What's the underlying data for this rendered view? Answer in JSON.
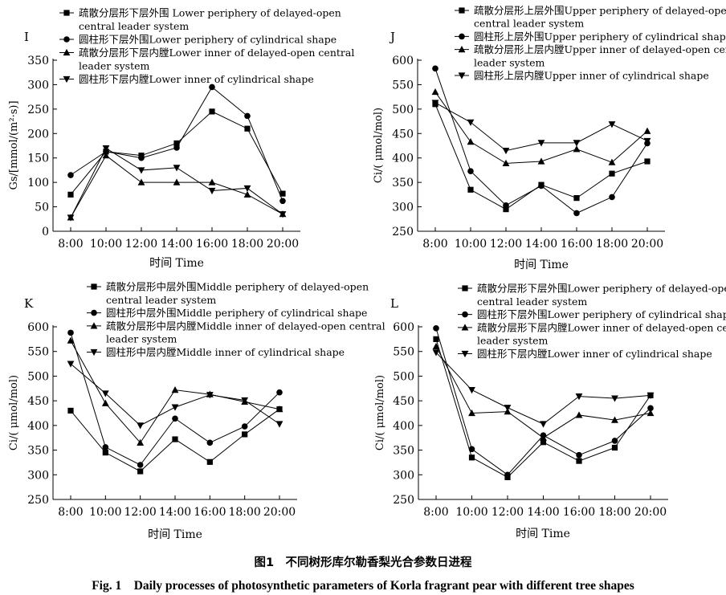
{
  "figure": {
    "caption_cn": "图1　不同树形库尔勒香梨光合参数日进程",
    "caption_en": "Fig. 1　Daily processes of photosynthetic parameters of Korla fragrant pear with different tree shapes"
  },
  "chart_data": [
    {
      "panel": "I",
      "type": "line",
      "xlabel": "时间 Time",
      "ylabel": "Gs/[mmol/(m²·s)]",
      "categories": [
        "8:00",
        "10:00",
        "12:00",
        "14:00",
        "16:00",
        "18:00",
        "20:00"
      ],
      "ylim": [
        0,
        350
      ],
      "yticks": [
        0,
        50,
        100,
        150,
        200,
        250,
        300,
        350
      ],
      "grid": false,
      "legend_position": "top",
      "series": [
        {
          "name": "疏散分层形下层外围 Lower periphery of delayed-open central leader system",
          "marker": "square",
          "values": [
            75,
            163,
            155,
            180,
            245,
            210,
            77
          ]
        },
        {
          "name": "圆柱形下层外围Lower periphery of cylindrical shape",
          "marker": "circle",
          "values": [
            115,
            163,
            150,
            171,
            295,
            236,
            62
          ]
        },
        {
          "name": "疏散分层形下层内膛Lower inner of delayed-open central leader system",
          "marker": "triangle-up",
          "values": [
            28,
            155,
            100,
            100,
            100,
            75,
            35
          ]
        },
        {
          "name": "圆柱形下层内膛Lower inner of cylindrical shape",
          "marker": "triangle-down",
          "values": [
            28,
            170,
            125,
            130,
            83,
            88,
            35
          ]
        }
      ]
    },
    {
      "panel": "J",
      "type": "line",
      "xlabel": "时间 Time",
      "ylabel": "Ci/( μmol/mol)",
      "categories": [
        "8:00",
        "10:00",
        "12:00",
        "14:00",
        "16:00",
        "18:00",
        "20:00"
      ],
      "ylim": [
        250,
        600
      ],
      "yticks": [
        250,
        300,
        350,
        400,
        450,
        500,
        550,
        600
      ],
      "grid": false,
      "legend_position": "top",
      "series": [
        {
          "name": "疏散分层形上层外围Upper periphery of delayed-open central leader system",
          "marker": "square",
          "values": [
            510,
            335,
            295,
            345,
            318,
            368,
            393
          ]
        },
        {
          "name": "圆柱形上层外围Upper periphery of cylindrical shape",
          "marker": "circle",
          "values": [
            583,
            373,
            303,
            343,
            287,
            320,
            430
          ]
        },
        {
          "name": "疏散分层形上层内膛Upper inner of delayed-open central leader system",
          "marker": "triangle-up",
          "values": [
            535,
            433,
            389,
            393,
            418,
            391,
            455
          ]
        },
        {
          "name": "圆柱形上层内膛Upper inner of cylindrical shape",
          "marker": "triangle-down",
          "values": [
            513,
            473,
            415,
            431,
            431,
            469,
            435
          ]
        }
      ]
    },
    {
      "panel": "K",
      "type": "line",
      "xlabel": "时间 Time",
      "ylabel": "Ci/( μmol/mol)",
      "categories": [
        "8:00",
        "10:00",
        "12:00",
        "14:00",
        "16:00",
        "18:00",
        "20:00"
      ],
      "ylim": [
        250,
        600
      ],
      "yticks": [
        250,
        300,
        350,
        400,
        450,
        500,
        550,
        600
      ],
      "grid": false,
      "legend_position": "top",
      "series": [
        {
          "name": "疏散分层形中层外围Middle  periphery of delayed-open central leader system",
          "marker": "square",
          "values": [
            430,
            345,
            307,
            372,
            326,
            382,
            433
          ]
        },
        {
          "name": "圆柱形中层外围Middle periphery of cylindrical shape",
          "marker": "circle",
          "values": [
            588,
            356,
            320,
            414,
            365,
            398,
            467
          ]
        },
        {
          "name": "疏散分层形中层内膛Middle inner of delayed-open central leader system",
          "marker": "triangle-up",
          "values": [
            572,
            445,
            365,
            472,
            463,
            448,
            433
          ]
        },
        {
          "name": "圆柱形中层内膛Middle inner of cylindrical shape",
          "marker": "triangle-down",
          "values": [
            525,
            465,
            400,
            437,
            462,
            451,
            403
          ]
        }
      ]
    },
    {
      "panel": "L",
      "type": "line",
      "xlabel": "时间 Time",
      "ylabel": "Ci/( μmol/mol)",
      "categories": [
        "8:00",
        "10:00",
        "12:00",
        "14:00",
        "16:00",
        "18:00",
        "20:00"
      ],
      "ylim": [
        250,
        600
      ],
      "yticks": [
        250,
        300,
        350,
        400,
        450,
        500,
        550,
        600
      ],
      "grid": false,
      "legend_position": "top",
      "series": [
        {
          "name": "疏散分层形下层外围Lower periphery of delayed-open central leader system",
          "marker": "square",
          "values": [
            575,
            335,
            295,
            366,
            328,
            355,
            461
          ]
        },
        {
          "name": "圆柱形下层外围Lower periphery of cylindrical shape",
          "marker": "circle",
          "values": [
            597,
            352,
            300,
            380,
            340,
            369,
            435
          ]
        },
        {
          "name": "疏散分层形下层内膛Lower inner of delayed-open central leader system",
          "marker": "triangle-up",
          "values": [
            560,
            425,
            428,
            375,
            421,
            411,
            425
          ]
        },
        {
          "name": "圆柱形下层内膛Lower inner of cylindrical shape",
          "marker": "triangle-down",
          "values": [
            548,
            472,
            436,
            403,
            459,
            455,
            461
          ]
        }
      ]
    }
  ]
}
